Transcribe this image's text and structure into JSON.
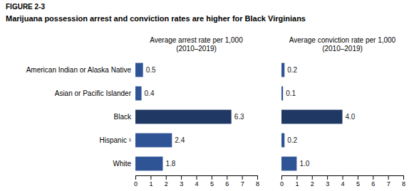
{
  "title": "FIGURE 2-3",
  "subtitle": "Marijuana possession arrest and conviction rates are higher for Black Virginians",
  "chart_data": [
    {
      "type": "bar",
      "orientation": "horizontal",
      "title": "Average arrest rate per 1,000\n(2010–2019)",
      "categories": [
        "American Indian or Alaska Native",
        "Asian or Pacific Islander",
        "Black",
        "Hispanic ¹",
        "White"
      ],
      "values": [
        0.5,
        0.4,
        6.3,
        2.4,
        1.8
      ],
      "colors": [
        "#2e5496",
        "#2e5496",
        "#1f3864",
        "#2e5496",
        "#2e5496"
      ],
      "data_labels": true,
      "xlim": [
        0,
        8
      ],
      "xticks": [
        0,
        1,
        2,
        3,
        4,
        5,
        6,
        7,
        8
      ],
      "grid": false
    },
    {
      "type": "bar",
      "orientation": "horizontal",
      "title": "Average conviction rate per 1,000\n(2010–2019)",
      "categories": [
        "American Indian or Alaska Native",
        "Asian or Pacific Islander",
        "Black",
        "Hispanic ¹",
        "White"
      ],
      "values": [
        0.2,
        0.1,
        4.0,
        0.2,
        1.0
      ],
      "value_labels": [
        "0.2",
        "0.1",
        "4.0",
        "0.2",
        "1.0"
      ],
      "colors": [
        "#2e5496",
        "#2e5496",
        "#1f3864",
        "#2e5496",
        "#2e5496"
      ],
      "data_labels": true,
      "xlim": [
        0,
        8
      ],
      "xticks": [
        0,
        1,
        2,
        3,
        4,
        5,
        6,
        7,
        8
      ],
      "grid": false,
      "tick_labels": "x"
    }
  ]
}
